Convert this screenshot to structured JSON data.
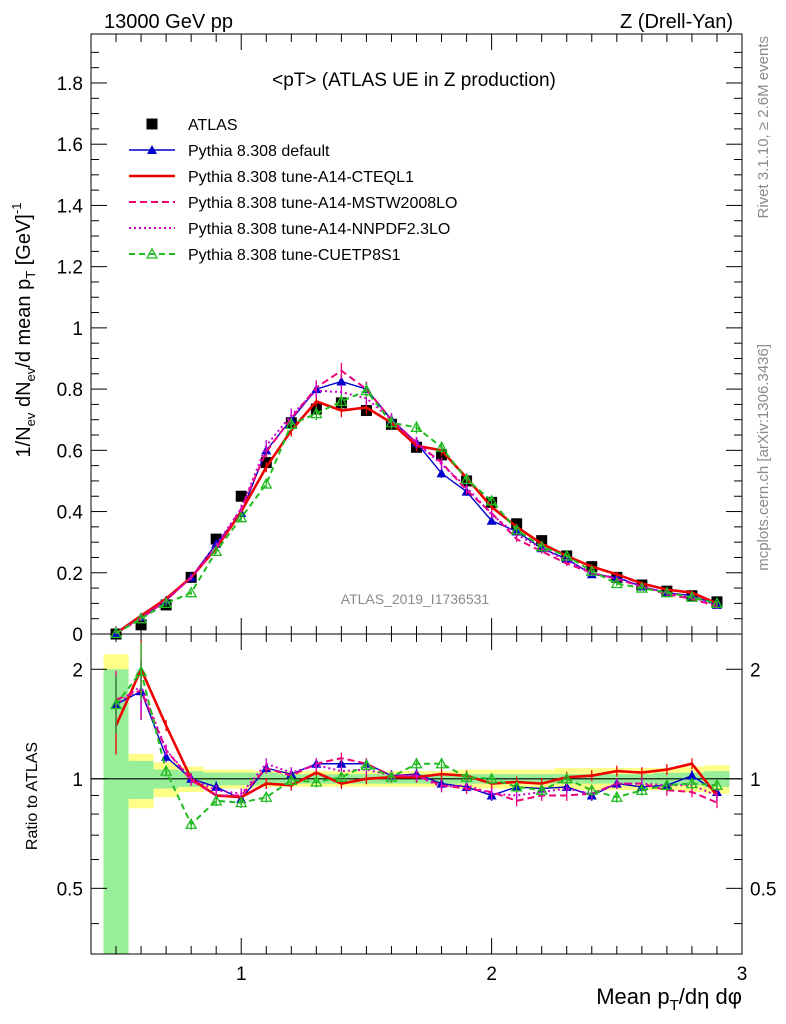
{
  "header": {
    "left": "13000 GeV pp",
    "right": "Z (Drell-Yan)"
  },
  "side_labels": {
    "rivet": "Rivet 3.1.10, ≥ 2.6M events",
    "mcplots": "mcplots.cern.ch [arXiv:1306.3436]"
  },
  "chart_data": {
    "type": "line",
    "title": "<pT> (ATLAS UE in Z production)",
    "analysis_label": "ATLAS_2019_I1736531",
    "xlabel": "Mean p_T/dη dφ",
    "ylabel": "1/N_ev dN_ev/d mean p_T [GeV]^-1",
    "ratio_ylabel": "Ratio to ATLAS",
    "xlim": [
      0.4,
      3.0
    ],
    "ylim": [
      0,
      1.96
    ],
    "ratio_ylim": [
      0.33,
      2.5
    ],
    "x_ticks": [
      1,
      2,
      3
    ],
    "y_ticks": [
      0,
      0.2,
      0.4,
      0.6,
      0.8,
      1,
      1.2,
      1.4,
      1.6,
      1.8
    ],
    "y_tick_labels": [
      "0",
      "0.2",
      "0.4",
      "0.6",
      "0.8",
      "1",
      "1.2",
      "1.4",
      "1.6",
      "1.8"
    ],
    "ratio_ticks": [
      0.5,
      1,
      2
    ],
    "ratio_tick_labels": [
      "0.5",
      "1",
      "2"
    ],
    "legend_position": "top-left",
    "x": [
      0.5,
      0.6,
      0.7,
      0.8,
      0.9,
      1.0,
      1.1,
      1.2,
      1.3,
      1.4,
      1.5,
      1.6,
      1.7,
      1.8,
      1.9,
      2.0,
      2.1,
      2.2,
      2.3,
      2.4,
      2.5,
      2.6,
      2.7,
      2.8,
      2.9
    ],
    "series": [
      {
        "name": "ATLAS",
        "color": "#000000",
        "marker": "square",
        "line": "none",
        "values": [
          0.0,
          0.03,
          0.095,
          0.185,
          0.31,
          0.45,
          0.56,
          0.69,
          0.735,
          0.755,
          0.73,
          0.685,
          0.61,
          0.585,
          0.5,
          0.43,
          0.36,
          0.305,
          0.255,
          0.22,
          0.185,
          0.16,
          0.14,
          0.125,
          0.105
        ]
      },
      {
        "name": "Pythia 8.308 default",
        "color": "#0000cc",
        "marker": "triangle",
        "line": "solid",
        "values": [
          0.002,
          0.055,
          0.11,
          0.185,
          0.295,
          0.395,
          0.6,
          0.7,
          0.8,
          0.825,
          0.8,
          0.7,
          0.625,
          0.525,
          0.465,
          0.37,
          0.335,
          0.28,
          0.245,
          0.195,
          0.185,
          0.155,
          0.135,
          0.125,
          0.095
        ]
      },
      {
        "name": "Pythia 8.308 tune-A14-CTEQL1",
        "color": "#ee0000",
        "marker": "none",
        "line": "solid",
        "values": [
          0.002,
          0.06,
          0.115,
          0.185,
          0.28,
          0.4,
          0.545,
          0.665,
          0.76,
          0.73,
          0.74,
          0.69,
          0.615,
          0.6,
          0.51,
          0.415,
          0.35,
          0.295,
          0.255,
          0.22,
          0.195,
          0.165,
          0.145,
          0.135,
          0.1
        ]
      },
      {
        "name": "Pythia 8.308 tune-A14-MSTW2008LO",
        "color": "#ee0077",
        "marker": "none",
        "line": "dashed",
        "values": [
          0.002,
          0.05,
          0.11,
          0.185,
          0.28,
          0.41,
          0.595,
          0.705,
          0.805,
          0.86,
          0.8,
          0.7,
          0.625,
          0.56,
          0.47,
          0.395,
          0.31,
          0.27,
          0.23,
          0.2,
          0.18,
          0.155,
          0.13,
          0.115,
          0.09
        ]
      },
      {
        "name": "Pythia 8.308 tune-A14-NNPDF2.3LO",
        "color": "#cc00cc",
        "marker": "none",
        "line": "dotted",
        "values": [
          0.002,
          0.055,
          0.11,
          0.185,
          0.29,
          0.41,
          0.615,
          0.715,
          0.795,
          0.79,
          0.77,
          0.7,
          0.625,
          0.555,
          0.48,
          0.39,
          0.325,
          0.28,
          0.24,
          0.2,
          0.18,
          0.155,
          0.135,
          0.12,
          0.095
        ]
      },
      {
        "name": "Pythia 8.308 tune-CUETP8S1",
        "color": "#22bb22",
        "marker": "open-triangle",
        "line": "dashed",
        "values": [
          0.002,
          0.05,
          0.1,
          0.135,
          0.27,
          0.38,
          0.49,
          0.685,
          0.72,
          0.76,
          0.795,
          0.69,
          0.675,
          0.61,
          0.505,
          0.435,
          0.34,
          0.285,
          0.255,
          0.205,
          0.165,
          0.15,
          0.135,
          0.12,
          0.1
        ]
      }
    ],
    "ratio_series": {
      "Pythia 8.308 default": [
        1.6,
        1.74,
        1.15,
        1.0,
        0.95,
        0.88,
        1.07,
        1.03,
        1.1,
        1.1,
        1.1,
        1.02,
        1.03,
        0.97,
        0.95,
        0.9,
        0.95,
        0.94,
        0.95,
        0.9,
        0.97,
        0.95,
        0.96,
        1.02,
        0.92
      ],
      "Pythia 8.308 tune-A14-CTEQL1": [
        1.4,
        2.0,
        1.4,
        1.0,
        0.9,
        0.89,
        0.97,
        0.96,
        1.04,
        0.97,
        1.0,
        1.01,
        1.01,
        1.03,
        1.02,
        0.97,
        0.98,
        0.97,
        1.01,
        1.02,
        1.05,
        1.04,
        1.06,
        1.1,
        0.9
      ],
      "Pythia 8.308 tune-A14-MSTW2008LO": [
        1.65,
        1.75,
        1.2,
        0.99,
        0.9,
        0.9,
        1.07,
        1.02,
        1.1,
        1.14,
        1.1,
        1.02,
        1.02,
        0.96,
        0.94,
        0.92,
        0.87,
        0.9,
        0.9,
        0.91,
        0.97,
        0.97,
        0.93,
        0.92,
        0.86
      ],
      "Pythia 8.308 tune-A14-NNPDF2.3LO": [
        1.6,
        1.8,
        1.2,
        1.0,
        0.93,
        0.91,
        1.1,
        1.04,
        1.09,
        1.05,
        1.06,
        1.02,
        1.02,
        0.95,
        0.96,
        0.91,
        0.9,
        0.92,
        0.94,
        0.91,
        0.97,
        0.97,
        0.96,
        0.96,
        0.9
      ],
      "Pythia 8.308 tune-CUETP8S1": [
        1.6,
        1.97,
        1.05,
        0.75,
        0.87,
        0.86,
        0.89,
        0.99,
        0.98,
        1.01,
        1.09,
        1.01,
        1.1,
        1.1,
        1.01,
        1.0,
        0.95,
        0.93,
        1.0,
        0.93,
        0.89,
        0.93,
        0.96,
        0.97,
        0.96
      ]
    },
    "ratio_bands": {
      "green_halfwidth": [
        1.0,
        0.12,
        0.06,
        0.05,
        0.04,
        0.04,
        0.04,
        0.03,
        0.03,
        0.03,
        0.03,
        0.03,
        0.03,
        0.03,
        0.03,
        0.03,
        0.03,
        0.03,
        0.03,
        0.03,
        0.03,
        0.03,
        0.04,
        0.04,
        0.05
      ],
      "yellow_halfwidth": [
        1.2,
        0.17,
        0.11,
        0.08,
        0.06,
        0.06,
        0.05,
        0.05,
        0.05,
        0.05,
        0.05,
        0.05,
        0.05,
        0.05,
        0.06,
        0.06,
        0.06,
        0.06,
        0.07,
        0.07,
        0.07,
        0.07,
        0.07,
        0.08,
        0.09
      ]
    }
  }
}
